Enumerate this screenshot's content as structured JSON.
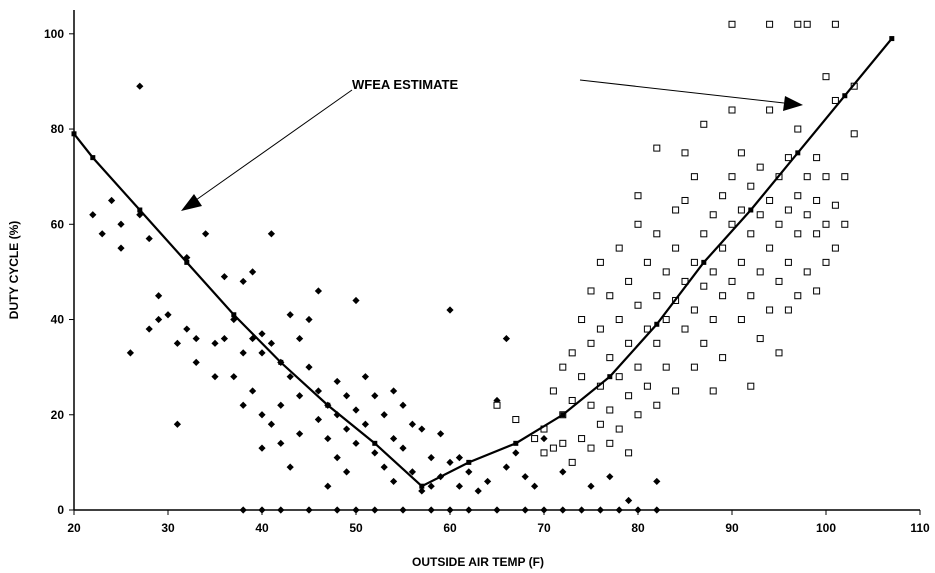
{
  "chart_data": {
    "type": "scatter",
    "title": "",
    "xlabel": "OUTSIDE AIR TEMP (F)",
    "ylabel": "DUTY CYCLE (%)",
    "xlim": [
      20,
      110
    ],
    "ylim": [
      0,
      105
    ],
    "xticks": [
      "20",
      "30",
      "40",
      "50",
      "60",
      "70",
      "80",
      "90",
      "100",
      "110"
    ],
    "yticks": [
      "0",
      "20",
      "40",
      "60",
      "80",
      "100"
    ],
    "grid": false,
    "legend": "none",
    "annotation": "WFEA ESTIMATE",
    "series": [
      {
        "marker": "filled-diamond",
        "color": "#000000",
        "points": [
          [
            22,
            62
          ],
          [
            23,
            58
          ],
          [
            24,
            65
          ],
          [
            25,
            55
          ],
          [
            25,
            60
          ],
          [
            26,
            33
          ],
          [
            27,
            62
          ],
          [
            27,
            89
          ],
          [
            28,
            57
          ],
          [
            28,
            38
          ],
          [
            29,
            40
          ],
          [
            29,
            45
          ],
          [
            30,
            41
          ],
          [
            31,
            35
          ],
          [
            31,
            18
          ],
          [
            32,
            53
          ],
          [
            32,
            38
          ],
          [
            33,
            36
          ],
          [
            33,
            31
          ],
          [
            34,
            58
          ],
          [
            35,
            35
          ],
          [
            35,
            28
          ],
          [
            36,
            49
          ],
          [
            36,
            36
          ],
          [
            37,
            40
          ],
          [
            37,
            28
          ],
          [
            38,
            33
          ],
          [
            38,
            48
          ],
          [
            38,
            22
          ],
          [
            39,
            36
          ],
          [
            39,
            50
          ],
          [
            39,
            25
          ],
          [
            40,
            37
          ],
          [
            40,
            33
          ],
          [
            40,
            20
          ],
          [
            40,
            13
          ],
          [
            41,
            58
          ],
          [
            41,
            35
          ],
          [
            41,
            18
          ],
          [
            42,
            31
          ],
          [
            42,
            22
          ],
          [
            42,
            14
          ],
          [
            43,
            41
          ],
          [
            43,
            28
          ],
          [
            43,
            9
          ],
          [
            44,
            36
          ],
          [
            44,
            24
          ],
          [
            44,
            16
          ],
          [
            45,
            30
          ],
          [
            45,
            40
          ],
          [
            46,
            25
          ],
          [
            46,
            19
          ],
          [
            46,
            46
          ],
          [
            47,
            22
          ],
          [
            47,
            15
          ],
          [
            47,
            5
          ],
          [
            48,
            27
          ],
          [
            48,
            20
          ],
          [
            48,
            11
          ],
          [
            49,
            24
          ],
          [
            49,
            17
          ],
          [
            49,
            8
          ],
          [
            50,
            44
          ],
          [
            50,
            21
          ],
          [
            50,
            14
          ],
          [
            51,
            28
          ],
          [
            51,
            18
          ],
          [
            52,
            24
          ],
          [
            52,
            12
          ],
          [
            53,
            20
          ],
          [
            53,
            9
          ],
          [
            54,
            25
          ],
          [
            54,
            15
          ],
          [
            54,
            6
          ],
          [
            55,
            22
          ],
          [
            55,
            13
          ],
          [
            56,
            18
          ],
          [
            56,
            8
          ],
          [
            57,
            17
          ],
          [
            57,
            4
          ],
          [
            58,
            11
          ],
          [
            58,
            5
          ],
          [
            59,
            16
          ],
          [
            59,
            7
          ],
          [
            60,
            42
          ],
          [
            60,
            10
          ],
          [
            61,
            11
          ],
          [
            61,
            5
          ],
          [
            62,
            8
          ],
          [
            63,
            4
          ],
          [
            64,
            6
          ],
          [
            65,
            23
          ],
          [
            66,
            36
          ],
          [
            66,
            9
          ],
          [
            67,
            12
          ],
          [
            68,
            7
          ],
          [
            69,
            5
          ],
          [
            70,
            15
          ],
          [
            72,
            8
          ],
          [
            75,
            5
          ],
          [
            77,
            7
          ],
          [
            79,
            2
          ],
          [
            82,
            6
          ]
        ]
      },
      {
        "marker": "open-square",
        "color": "#000000",
        "points": [
          [
            65,
            22
          ],
          [
            67,
            19
          ],
          [
            69,
            15
          ],
          [
            70,
            12
          ],
          [
            70,
            17
          ],
          [
            71,
            13
          ],
          [
            71,
            25
          ],
          [
            72,
            30
          ],
          [
            72,
            14
          ],
          [
            72,
            20
          ],
          [
            73,
            33
          ],
          [
            73,
            23
          ],
          [
            73,
            10
          ],
          [
            74,
            28
          ],
          [
            74,
            15
          ],
          [
            74,
            40
          ],
          [
            75,
            35
          ],
          [
            75,
            22
          ],
          [
            75,
            13
          ],
          [
            75,
            46
          ],
          [
            76,
            38
          ],
          [
            76,
            26
          ],
          [
            76,
            18
          ],
          [
            76,
            52
          ],
          [
            77,
            32
          ],
          [
            77,
            45
          ],
          [
            77,
            21
          ],
          [
            77,
            14
          ],
          [
            78,
            40
          ],
          [
            78,
            28
          ],
          [
            78,
            55
          ],
          [
            78,
            17
          ],
          [
            79,
            35
          ],
          [
            79,
            48
          ],
          [
            79,
            24
          ],
          [
            79,
            12
          ],
          [
            80,
            43
          ],
          [
            80,
            30
          ],
          [
            80,
            60
          ],
          [
            80,
            20
          ],
          [
            80,
            66
          ],
          [
            81,
            38
          ],
          [
            81,
            52
          ],
          [
            81,
            26
          ],
          [
            82,
            45
          ],
          [
            82,
            35
          ],
          [
            82,
            58
          ],
          [
            82,
            76
          ],
          [
            82,
            22
          ],
          [
            83,
            50
          ],
          [
            83,
            40
          ],
          [
            83,
            30
          ],
          [
            84,
            55
          ],
          [
            84,
            44
          ],
          [
            84,
            63
          ],
          [
            84,
            25
          ],
          [
            85,
            48
          ],
          [
            85,
            38
          ],
          [
            85,
            65
          ],
          [
            85,
            75
          ],
          [
            86,
            52
          ],
          [
            86,
            42
          ],
          [
            86,
            30
          ],
          [
            86,
            70
          ],
          [
            87,
            58
          ],
          [
            87,
            47
          ],
          [
            87,
            35
          ],
          [
            87,
            81
          ],
          [
            88,
            62
          ],
          [
            88,
            50
          ],
          [
            88,
            40
          ],
          [
            88,
            25
          ],
          [
            89,
            55
          ],
          [
            89,
            45
          ],
          [
            89,
            66
          ],
          [
            89,
            32
          ],
          [
            90,
            60
          ],
          [
            90,
            48
          ],
          [
            90,
            70
          ],
          [
            90,
            84
          ],
          [
            90,
            102
          ],
          [
            91,
            52
          ],
          [
            91,
            40
          ],
          [
            91,
            63
          ],
          [
            91,
            75
          ],
          [
            92,
            58
          ],
          [
            92,
            45
          ],
          [
            92,
            68
          ],
          [
            92,
            26
          ],
          [
            93,
            62
          ],
          [
            93,
            50
          ],
          [
            93,
            72
          ],
          [
            93,
            36
          ],
          [
            94,
            55
          ],
          [
            94,
            65
          ],
          [
            94,
            42
          ],
          [
            94,
            84
          ],
          [
            94,
            102
          ],
          [
            95,
            60
          ],
          [
            95,
            48
          ],
          [
            95,
            70
          ],
          [
            95,
            33
          ],
          [
            96,
            63
          ],
          [
            96,
            52
          ],
          [
            96,
            74
          ],
          [
            96,
            42
          ],
          [
            97,
            58
          ],
          [
            97,
            66
          ],
          [
            97,
            45
          ],
          [
            97,
            80
          ],
          [
            97,
            102
          ],
          [
            98,
            62
          ],
          [
            98,
            50
          ],
          [
            98,
            70
          ],
          [
            98,
            102
          ],
          [
            99,
            58
          ],
          [
            99,
            46
          ],
          [
            99,
            65
          ],
          [
            99,
            74
          ],
          [
            100,
            60
          ],
          [
            100,
            52
          ],
          [
            100,
            70
          ],
          [
            100,
            91
          ],
          [
            101,
            55
          ],
          [
            101,
            64
          ],
          [
            101,
            102
          ],
          [
            101,
            86
          ],
          [
            102,
            60
          ],
          [
            102,
            70
          ],
          [
            103,
            79
          ],
          [
            103,
            89
          ]
        ]
      },
      {
        "marker": "filled-diamond-baseline",
        "color": "#000000",
        "points": [
          [
            38,
            0
          ],
          [
            40,
            0
          ],
          [
            42,
            0
          ],
          [
            45,
            0
          ],
          [
            48,
            0
          ],
          [
            50,
            0
          ],
          [
            52,
            0
          ],
          [
            55,
            0
          ],
          [
            58,
            0
          ],
          [
            60,
            0
          ],
          [
            62,
            0
          ],
          [
            65,
            0
          ],
          [
            68,
            0
          ],
          [
            70,
            0
          ],
          [
            72,
            0
          ],
          [
            74,
            0
          ],
          [
            76,
            0
          ],
          [
            78,
            0
          ],
          [
            80,
            0
          ],
          [
            82,
            0
          ]
        ]
      },
      {
        "name": "WFEA ESTIMATE",
        "marker": "line",
        "color": "#000000",
        "points": [
          [
            20,
            79
          ],
          [
            22,
            74
          ],
          [
            27,
            63
          ],
          [
            32,
            52
          ],
          [
            37,
            41
          ],
          [
            42,
            31
          ],
          [
            47,
            22
          ],
          [
            52,
            14
          ],
          [
            57,
            5
          ],
          [
            62,
            10
          ],
          [
            67,
            14
          ],
          [
            72,
            20
          ],
          [
            77,
            28
          ],
          [
            82,
            39
          ],
          [
            87,
            52
          ],
          [
            92,
            63
          ],
          [
            97,
            75
          ],
          [
            102,
            87
          ],
          [
            107,
            99
          ]
        ]
      }
    ]
  }
}
